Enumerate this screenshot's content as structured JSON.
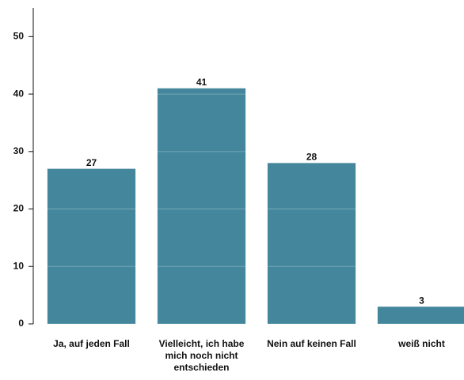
{
  "chart_data": {
    "type": "bar",
    "categories": [
      "Ja, auf jeden Fall",
      "Vielleicht, ich habe mich noch nicht entschieden",
      "Nein auf keinen Fall",
      "weiß nicht"
    ],
    "values": [
      27,
      41,
      28,
      3
    ],
    "color": "#44879c",
    "ylim": [
      0,
      55
    ],
    "yticks": [
      0,
      10,
      20,
      30,
      40,
      50
    ],
    "grid": true
  }
}
